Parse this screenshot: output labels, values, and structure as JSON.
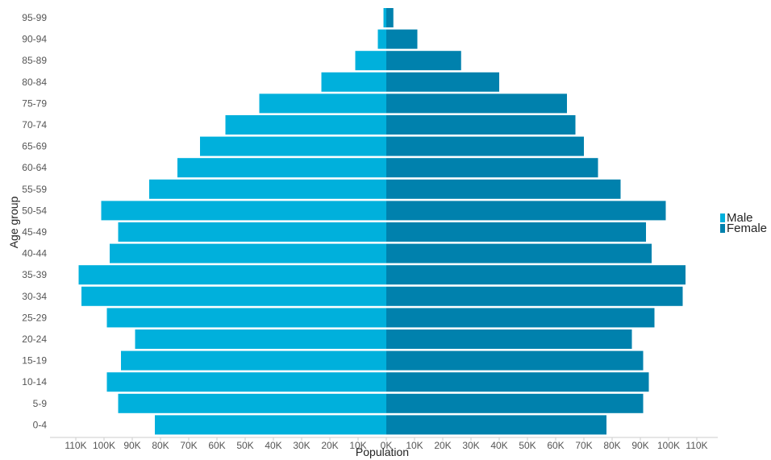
{
  "chart_data": {
    "type": "bar",
    "orientation": "horizontal",
    "layout": "population-pyramid",
    "xlabel": "Population",
    "ylabel": "Age group",
    "categories": [
      "0-4",
      "5-9",
      "10-14",
      "15-19",
      "20-24",
      "25-29",
      "30-34",
      "35-39",
      "40-44",
      "45-49",
      "50-54",
      "55-59",
      "60-64",
      "65-69",
      "70-74",
      "75-79",
      "80-84",
      "85-89",
      "90-94",
      "95-99"
    ],
    "series": [
      {
        "name": "Male",
        "color": "#00b0dc",
        "direction": "left",
        "values": [
          82000,
          95000,
          99000,
          94000,
          89000,
          99000,
          108000,
          109000,
          98000,
          95000,
          101000,
          84000,
          74000,
          66000,
          57000,
          45000,
          23000,
          11000,
          3000,
          1000
        ]
      },
      {
        "name": "Female",
        "color": "#0081ad",
        "direction": "right",
        "values": [
          78000,
          91000,
          93000,
          91000,
          87000,
          95000,
          105000,
          106000,
          94000,
          92000,
          99000,
          83000,
          75000,
          70000,
          67000,
          64000,
          40000,
          26500,
          11000,
          2500
        ]
      }
    ],
    "xticks": [
      -110000,
      -100000,
      -90000,
      -80000,
      -70000,
      -60000,
      -50000,
      -40000,
      -30000,
      -20000,
      -10000,
      0,
      10000,
      20000,
      30000,
      40000,
      50000,
      60000,
      70000,
      80000,
      90000,
      100000,
      110000
    ],
    "xtick_labels": [
      "110K",
      "100K",
      "90K",
      "80K",
      "70K",
      "60K",
      "50K",
      "40K",
      "30K",
      "20K",
      "10K",
      "0K",
      "10K",
      "20K",
      "30K",
      "40K",
      "50K",
      "60K",
      "70K",
      "80K",
      "90K",
      "100K",
      "110K"
    ],
    "xlim": [
      -112000,
      112000
    ],
    "grid": false,
    "legend_position": "right"
  }
}
